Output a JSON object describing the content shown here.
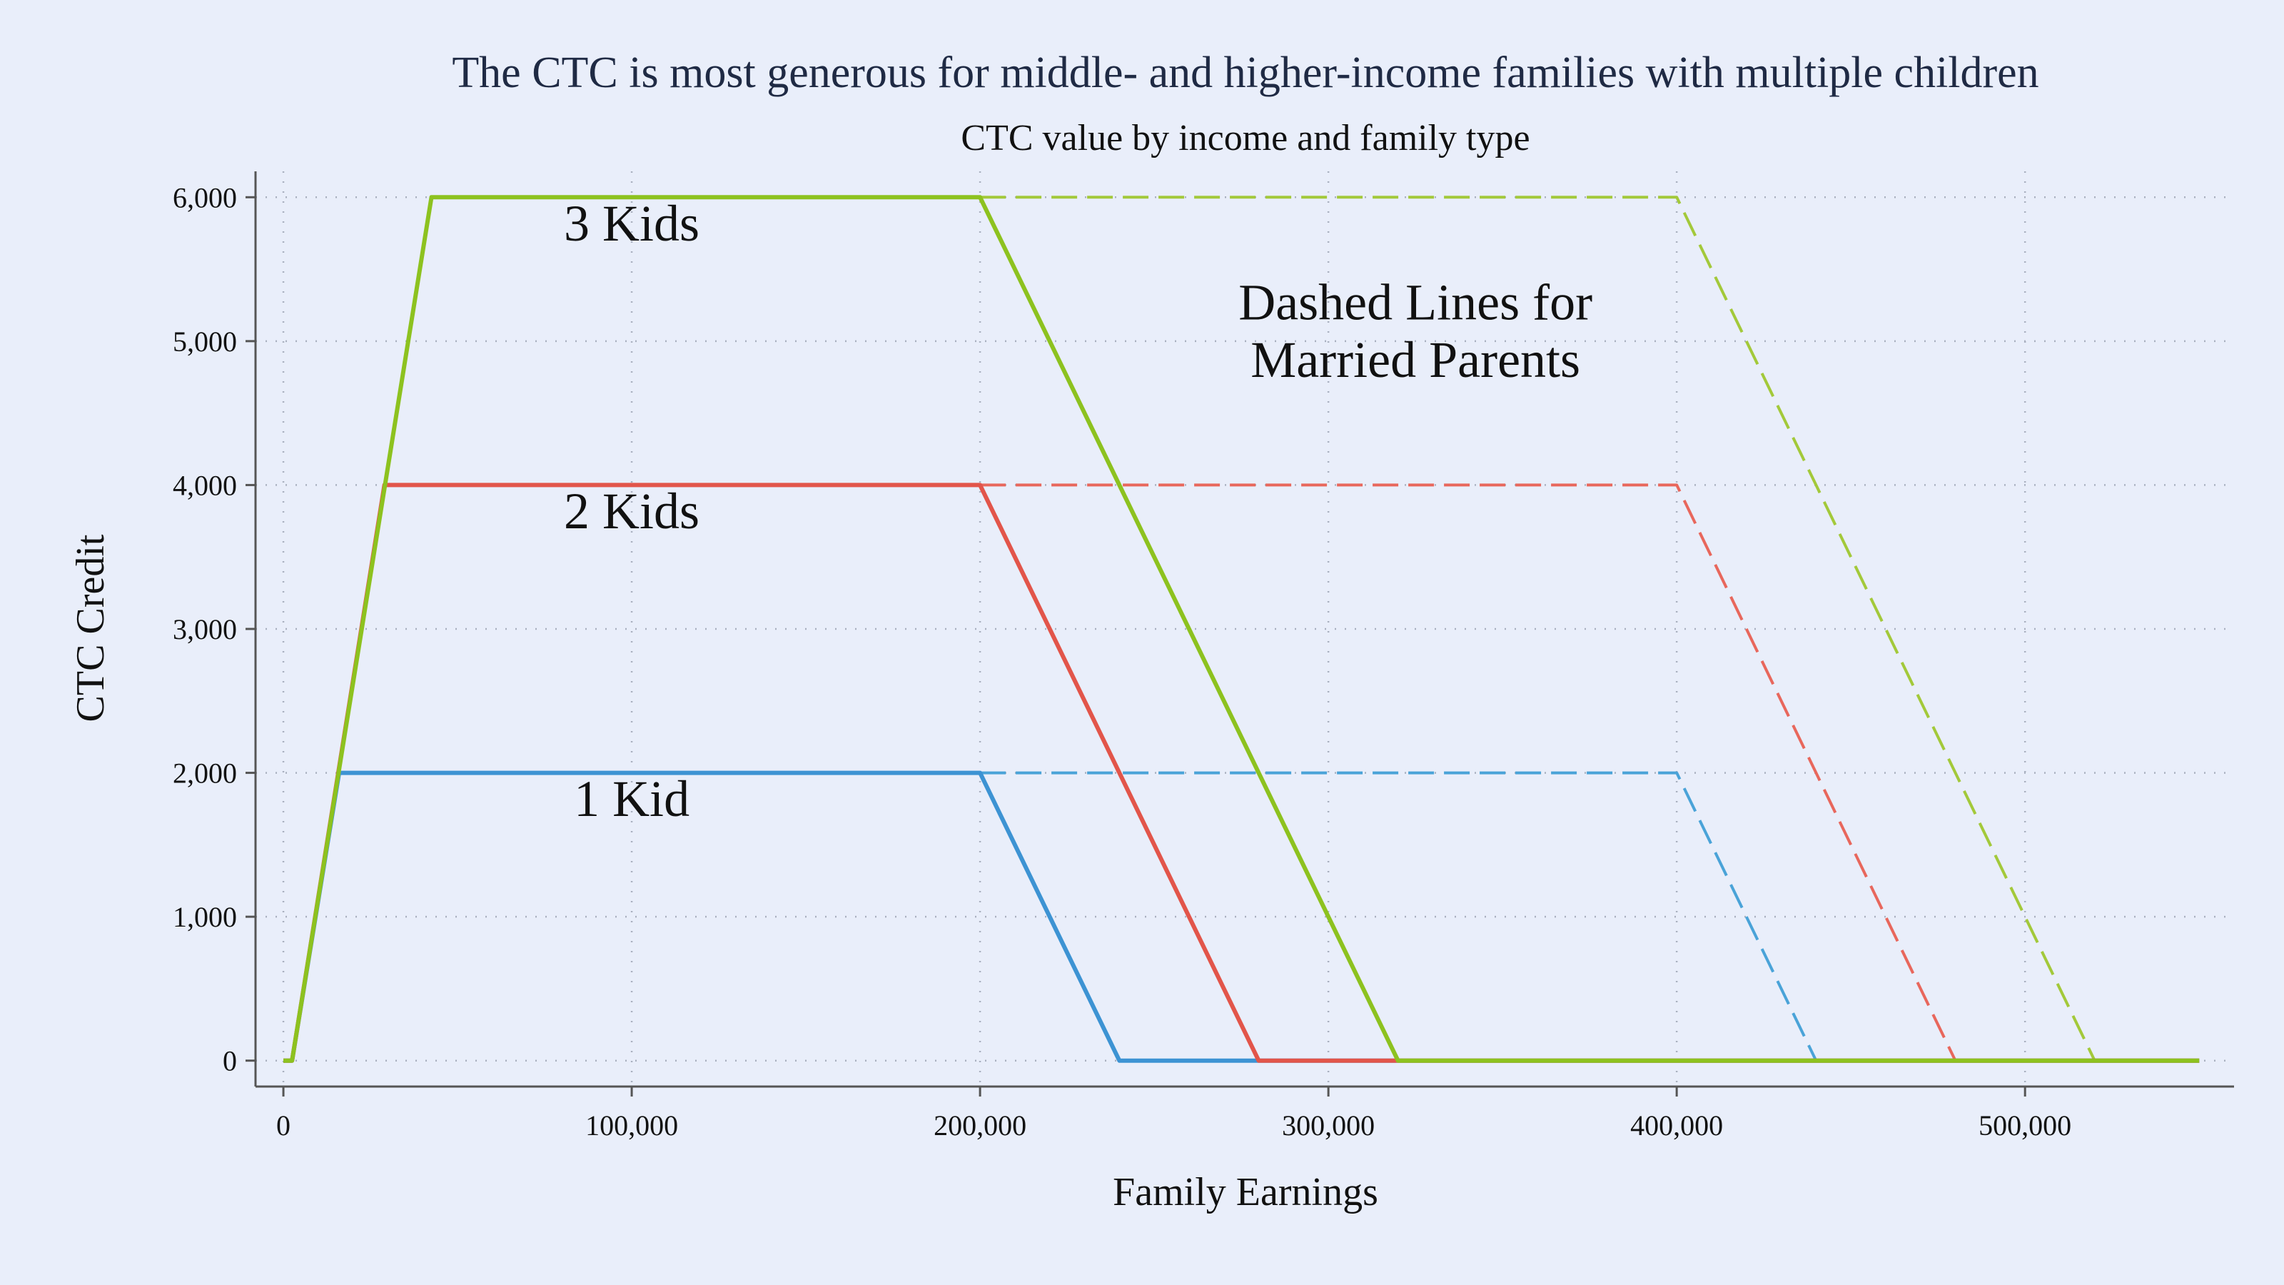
{
  "chart_data": {
    "type": "line",
    "title": "The CTC is most generous for middle- and higher-income families with multiple children",
    "subtitle": "CTC value by income and family type",
    "xlabel": "Family Earnings",
    "ylabel": "CTC Credit",
    "xlim": [
      -8000,
      560000
    ],
    "ylim": [
      -180,
      6180
    ],
    "x_ticks": [
      0,
      100000,
      200000,
      300000,
      400000,
      500000
    ],
    "x_tick_labels": [
      "0",
      "100,000",
      "200,000",
      "300,000",
      "400,000",
      "500,000"
    ],
    "y_ticks": [
      0,
      1000,
      2000,
      3000,
      4000,
      5000,
      6000
    ],
    "y_tick_labels": [
      "0",
      "1,000",
      "2,000",
      "3,000",
      "4,000",
      "5,000",
      "6,000"
    ],
    "grid": true,
    "series": [
      {
        "name": "1 Kid, single",
        "color": "#3d93d3",
        "style": "solid",
        "x": [
          0,
          2500,
          16000,
          200000,
          240000,
          550000
        ],
        "values": [
          0,
          0,
          2000,
          2000,
          0,
          0
        ]
      },
      {
        "name": "2 Kids, single",
        "color": "#e2554a",
        "style": "solid",
        "x": [
          0,
          2500,
          29000,
          200000,
          280000,
          550000
        ],
        "values": [
          0,
          0,
          4000,
          4000,
          0,
          0
        ]
      },
      {
        "name": "3 Kids, single",
        "color": "#8dc21f",
        "style": "solid",
        "x": [
          0,
          2500,
          42500,
          200000,
          320000,
          550000
        ],
        "values": [
          0,
          0,
          6000,
          6000,
          0,
          0
        ]
      },
      {
        "name": "1 Kid, married",
        "color": "#4aa3d8",
        "style": "dashed",
        "x": [
          200000,
          400000,
          440000
        ],
        "values": [
          2000,
          2000,
          0
        ]
      },
      {
        "name": "2 Kids, married",
        "color": "#e8675c",
        "style": "dashed",
        "x": [
          200000,
          400000,
          480000
        ],
        "values": [
          4000,
          4000,
          0
        ]
      },
      {
        "name": "3 Kids, married",
        "color": "#a3c93a",
        "style": "dashed",
        "x": [
          200000,
          400000,
          520000
        ],
        "values": [
          6000,
          6000,
          0
        ]
      }
    ],
    "annotations": [
      {
        "text": "3 Kids",
        "x": 100000,
        "y": 5700
      },
      {
        "text": "2 Kids",
        "x": 100000,
        "y": 3700
      },
      {
        "text": "1 Kid",
        "x": 100000,
        "y": 1700
      },
      {
        "text": "Dashed Lines for",
        "x": 325000,
        "y": 5150
      },
      {
        "text": "Married Parents",
        "x": 325000,
        "y": 4750
      }
    ]
  }
}
